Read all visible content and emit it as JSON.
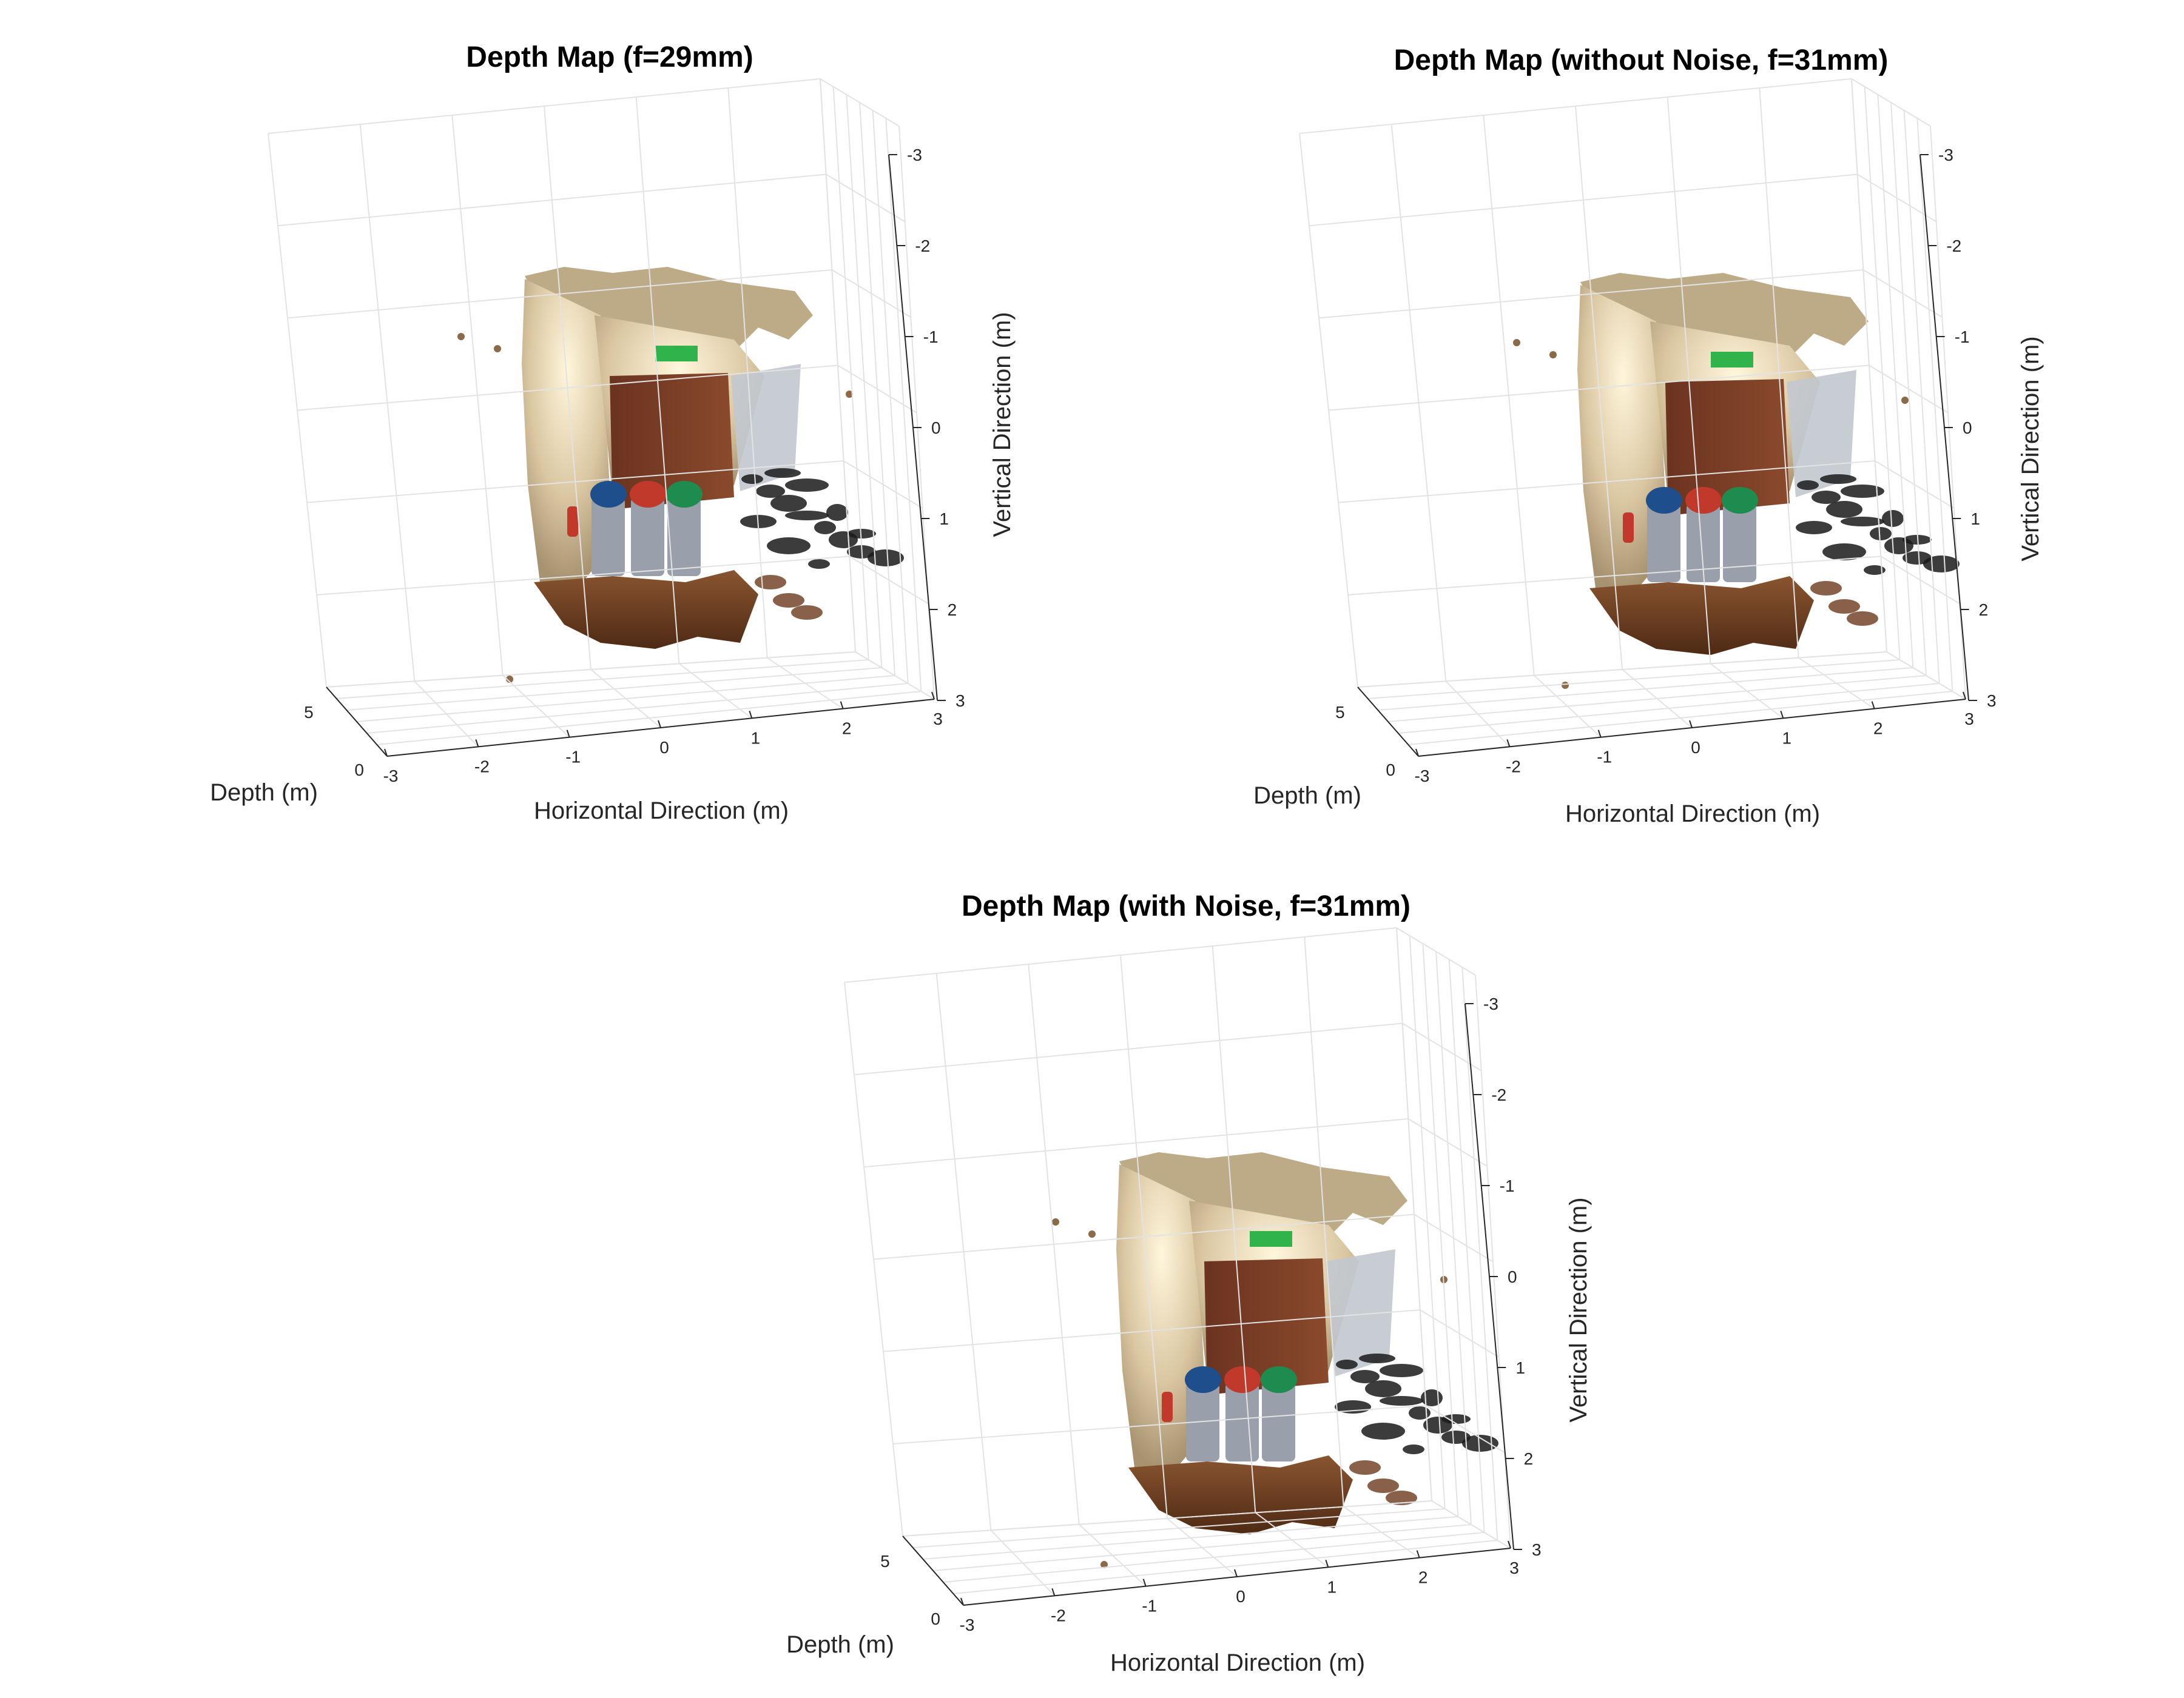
{
  "chart_data": [
    {
      "type": "scatter",
      "subtype": "3d-colored-point-cloud",
      "title": "Depth Map (f=29mm)",
      "xlabel": "Horizontal Direction (m)",
      "ylabel": "Depth (m)",
      "zlabel": "Vertical Direction (m)",
      "xlim": [
        -3,
        3
      ],
      "ylim": [
        0,
        6
      ],
      "zlim": [
        -3,
        3
      ],
      "zdir": "reverse",
      "xticks": [
        "-3",
        "-2",
        "-1",
        "0",
        "1",
        "2",
        "3"
      ],
      "yticks": [
        "0",
        "5"
      ],
      "zticks": [
        "-3",
        "-2",
        "-1",
        "0",
        "1",
        "2",
        "3"
      ],
      "grid": true
    },
    {
      "type": "scatter",
      "subtype": "3d-colored-point-cloud",
      "title": "Depth Map (without Noise, f=31mm)",
      "xlabel": "Horizontal Direction (m)",
      "ylabel": "Depth (m)",
      "zlabel": "Vertical Direction (m)",
      "xlim": [
        -3,
        3
      ],
      "ylim": [
        0,
        6
      ],
      "zlim": [
        -3,
        3
      ],
      "zdir": "reverse",
      "xticks": [
        "-3",
        "-2",
        "-1",
        "0",
        "1",
        "2",
        "3"
      ],
      "yticks": [
        "0",
        "5"
      ],
      "zticks": [
        "-3",
        "-2",
        "-1",
        "0",
        "1",
        "2",
        "3"
      ],
      "grid": true
    },
    {
      "type": "scatter",
      "subtype": "3d-colored-point-cloud",
      "title": "Depth Map (with Noise, f=31mm)",
      "xlabel": "Horizontal Direction (m)",
      "ylabel": "Depth (m)",
      "zlabel": "Vertical Direction (m)",
      "xlim": [
        -3,
        3
      ],
      "ylim": [
        0,
        6
      ],
      "zlim": [
        -3,
        3
      ],
      "zdir": "reverse",
      "xticks": [
        "-3",
        "-2",
        "-1",
        "0",
        "1",
        "2",
        "3"
      ],
      "yticks": [
        "0",
        "5"
      ],
      "zticks": [
        "-3",
        "-2",
        "-1",
        "0",
        "1",
        "2",
        "3"
      ],
      "grid": true
    }
  ],
  "colors": {
    "wall": "#d8c7a4",
    "floor": "#6b3a1e",
    "door": "#7a3d22",
    "bin_blue": "#1f4e8c",
    "bin_red": "#c0392b",
    "bin_green": "#1e8c4e",
    "bin_body": "#9aa0ab",
    "exit_sign": "#2fb34a",
    "dark_points": "#1a1a1a",
    "grid": "#e3e3e3",
    "axis": "#262626"
  }
}
